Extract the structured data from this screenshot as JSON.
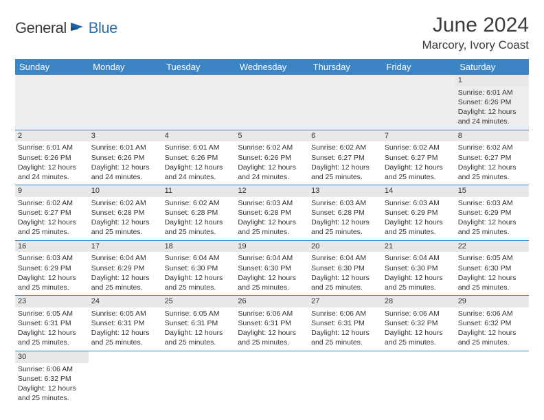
{
  "logo": {
    "general": "General",
    "blue": "Blue"
  },
  "title": "June 2024",
  "location": "Marcory, Ivory Coast",
  "colors": {
    "header_bg": "#3d84c4",
    "header_text": "#ffffff",
    "daynum_bg": "#e8e8e8",
    "text": "#333333"
  },
  "weekdays": [
    "Sunday",
    "Monday",
    "Tuesday",
    "Wednesday",
    "Thursday",
    "Friday",
    "Saturday"
  ],
  "weeks": [
    [
      null,
      null,
      null,
      null,
      null,
      null,
      {
        "n": "1",
        "sr": "Sunrise: 6:01 AM",
        "ss": "Sunset: 6:26 PM",
        "d1": "Daylight: 12 hours",
        "d2": "and 24 minutes."
      }
    ],
    [
      {
        "n": "2",
        "sr": "Sunrise: 6:01 AM",
        "ss": "Sunset: 6:26 PM",
        "d1": "Daylight: 12 hours",
        "d2": "and 24 minutes."
      },
      {
        "n": "3",
        "sr": "Sunrise: 6:01 AM",
        "ss": "Sunset: 6:26 PM",
        "d1": "Daylight: 12 hours",
        "d2": "and 24 minutes."
      },
      {
        "n": "4",
        "sr": "Sunrise: 6:01 AM",
        "ss": "Sunset: 6:26 PM",
        "d1": "Daylight: 12 hours",
        "d2": "and 24 minutes."
      },
      {
        "n": "5",
        "sr": "Sunrise: 6:02 AM",
        "ss": "Sunset: 6:26 PM",
        "d1": "Daylight: 12 hours",
        "d2": "and 24 minutes."
      },
      {
        "n": "6",
        "sr": "Sunrise: 6:02 AM",
        "ss": "Sunset: 6:27 PM",
        "d1": "Daylight: 12 hours",
        "d2": "and 25 minutes."
      },
      {
        "n": "7",
        "sr": "Sunrise: 6:02 AM",
        "ss": "Sunset: 6:27 PM",
        "d1": "Daylight: 12 hours",
        "d2": "and 25 minutes."
      },
      {
        "n": "8",
        "sr": "Sunrise: 6:02 AM",
        "ss": "Sunset: 6:27 PM",
        "d1": "Daylight: 12 hours",
        "d2": "and 25 minutes."
      }
    ],
    [
      {
        "n": "9",
        "sr": "Sunrise: 6:02 AM",
        "ss": "Sunset: 6:27 PM",
        "d1": "Daylight: 12 hours",
        "d2": "and 25 minutes."
      },
      {
        "n": "10",
        "sr": "Sunrise: 6:02 AM",
        "ss": "Sunset: 6:28 PM",
        "d1": "Daylight: 12 hours",
        "d2": "and 25 minutes."
      },
      {
        "n": "11",
        "sr": "Sunrise: 6:02 AM",
        "ss": "Sunset: 6:28 PM",
        "d1": "Daylight: 12 hours",
        "d2": "and 25 minutes."
      },
      {
        "n": "12",
        "sr": "Sunrise: 6:03 AM",
        "ss": "Sunset: 6:28 PM",
        "d1": "Daylight: 12 hours",
        "d2": "and 25 minutes."
      },
      {
        "n": "13",
        "sr": "Sunrise: 6:03 AM",
        "ss": "Sunset: 6:28 PM",
        "d1": "Daylight: 12 hours",
        "d2": "and 25 minutes."
      },
      {
        "n": "14",
        "sr": "Sunrise: 6:03 AM",
        "ss": "Sunset: 6:29 PM",
        "d1": "Daylight: 12 hours",
        "d2": "and 25 minutes."
      },
      {
        "n": "15",
        "sr": "Sunrise: 6:03 AM",
        "ss": "Sunset: 6:29 PM",
        "d1": "Daylight: 12 hours",
        "d2": "and 25 minutes."
      }
    ],
    [
      {
        "n": "16",
        "sr": "Sunrise: 6:03 AM",
        "ss": "Sunset: 6:29 PM",
        "d1": "Daylight: 12 hours",
        "d2": "and 25 minutes."
      },
      {
        "n": "17",
        "sr": "Sunrise: 6:04 AM",
        "ss": "Sunset: 6:29 PM",
        "d1": "Daylight: 12 hours",
        "d2": "and 25 minutes."
      },
      {
        "n": "18",
        "sr": "Sunrise: 6:04 AM",
        "ss": "Sunset: 6:30 PM",
        "d1": "Daylight: 12 hours",
        "d2": "and 25 minutes."
      },
      {
        "n": "19",
        "sr": "Sunrise: 6:04 AM",
        "ss": "Sunset: 6:30 PM",
        "d1": "Daylight: 12 hours",
        "d2": "and 25 minutes."
      },
      {
        "n": "20",
        "sr": "Sunrise: 6:04 AM",
        "ss": "Sunset: 6:30 PM",
        "d1": "Daylight: 12 hours",
        "d2": "and 25 minutes."
      },
      {
        "n": "21",
        "sr": "Sunrise: 6:04 AM",
        "ss": "Sunset: 6:30 PM",
        "d1": "Daylight: 12 hours",
        "d2": "and 25 minutes."
      },
      {
        "n": "22",
        "sr": "Sunrise: 6:05 AM",
        "ss": "Sunset: 6:30 PM",
        "d1": "Daylight: 12 hours",
        "d2": "and 25 minutes."
      }
    ],
    [
      {
        "n": "23",
        "sr": "Sunrise: 6:05 AM",
        "ss": "Sunset: 6:31 PM",
        "d1": "Daylight: 12 hours",
        "d2": "and 25 minutes."
      },
      {
        "n": "24",
        "sr": "Sunrise: 6:05 AM",
        "ss": "Sunset: 6:31 PM",
        "d1": "Daylight: 12 hours",
        "d2": "and 25 minutes."
      },
      {
        "n": "25",
        "sr": "Sunrise: 6:05 AM",
        "ss": "Sunset: 6:31 PM",
        "d1": "Daylight: 12 hours",
        "d2": "and 25 minutes."
      },
      {
        "n": "26",
        "sr": "Sunrise: 6:06 AM",
        "ss": "Sunset: 6:31 PM",
        "d1": "Daylight: 12 hours",
        "d2": "and 25 minutes."
      },
      {
        "n": "27",
        "sr": "Sunrise: 6:06 AM",
        "ss": "Sunset: 6:31 PM",
        "d1": "Daylight: 12 hours",
        "d2": "and 25 minutes."
      },
      {
        "n": "28",
        "sr": "Sunrise: 6:06 AM",
        "ss": "Sunset: 6:32 PM",
        "d1": "Daylight: 12 hours",
        "d2": "and 25 minutes."
      },
      {
        "n": "29",
        "sr": "Sunrise: 6:06 AM",
        "ss": "Sunset: 6:32 PM",
        "d1": "Daylight: 12 hours",
        "d2": "and 25 minutes."
      }
    ],
    [
      {
        "n": "30",
        "sr": "Sunrise: 6:06 AM",
        "ss": "Sunset: 6:32 PM",
        "d1": "Daylight: 12 hours",
        "d2": "and 25 minutes."
      },
      null,
      null,
      null,
      null,
      null,
      null
    ]
  ]
}
